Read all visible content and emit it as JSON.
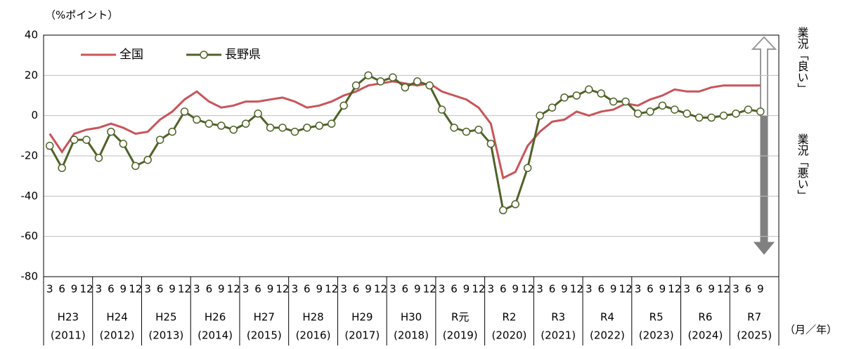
{
  "chart_data": {
    "type": "line",
    "y_unit_label": "（%ポイント）",
    "x_unit_label": "（月／年）",
    "annotation_good": "業況「良い」",
    "annotation_bad": "業況「悪い」",
    "categories": [
      "3",
      "6",
      "9",
      "12",
      "3",
      "6",
      "9",
      "12",
      "3",
      "6",
      "9",
      "12",
      "3",
      "6",
      "9",
      "12",
      "3",
      "6",
      "9",
      "12",
      "3",
      "6",
      "9",
      "12",
      "3",
      "6",
      "9",
      "12",
      "3",
      "6",
      "9",
      "12",
      "3",
      "6",
      "9",
      "12",
      "3",
      "6",
      "9",
      "12",
      "3",
      "6",
      "9",
      "12",
      "3",
      "6",
      "9",
      "12",
      "3",
      "6",
      "9",
      "12",
      "3",
      "6",
      "9",
      "12",
      "3",
      "6",
      "9"
    ],
    "years": [
      {
        "label": "H23",
        "sub": "(2011)"
      },
      {
        "label": "H24",
        "sub": "(2012)"
      },
      {
        "label": "H25",
        "sub": "(2013)"
      },
      {
        "label": "H26",
        "sub": "(2014)"
      },
      {
        "label": "H27",
        "sub": "(2015)"
      },
      {
        "label": "H28",
        "sub": "(2016)"
      },
      {
        "label": "H29",
        "sub": "(2017)"
      },
      {
        "label": "H30",
        "sub": "(2018)"
      },
      {
        "label": "R元",
        "sub": "(2019)"
      },
      {
        "label": "R2",
        "sub": "(2020)"
      },
      {
        "label": "R3",
        "sub": "(2021)"
      },
      {
        "label": "R4",
        "sub": "(2022)"
      },
      {
        "label": "R5",
        "sub": "(2023)"
      },
      {
        "label": "R6",
        "sub": "(2024)"
      },
      {
        "label": "R7",
        "sub": "(2025)"
      }
    ],
    "series": [
      {
        "name": "全国",
        "color": "#c9545a",
        "marker": false,
        "values": [
          -9,
          -18,
          -9,
          -7,
          -6,
          -4,
          -6,
          -9,
          -8,
          -2,
          2,
          8,
          12,
          7,
          4,
          5,
          7,
          7,
          8,
          9,
          7,
          4,
          5,
          7,
          10,
          12,
          15,
          16,
          17,
          16,
          15,
          16,
          12,
          10,
          8,
          4,
          -4,
          -31,
          -28,
          -15,
          -8,
          -3,
          -2,
          2,
          0,
          2,
          3,
          6,
          5,
          8,
          10,
          13,
          12,
          12,
          14,
          15,
          15,
          15,
          15
        ]
      },
      {
        "name": "長野県",
        "color": "#4f6228",
        "marker": true,
        "values": [
          -15,
          -26,
          -12,
          -12,
          -21,
          -8,
          -14,
          -25,
          -22,
          -12,
          -8,
          2,
          -2,
          -4,
          -5,
          -7,
          -4,
          1,
          -6,
          -6,
          -8,
          -6,
          -5,
          -4,
          5,
          15,
          20,
          17,
          19,
          14,
          17,
          15,
          3,
          -6,
          -8,
          -7,
          -14,
          -47,
          -44,
          -26,
          0,
          4,
          9,
          10,
          13,
          11,
          7,
          7,
          1,
          2,
          5,
          3,
          1,
          -1,
          -1,
          0,
          1,
          3,
          2
        ]
      }
    ],
    "ylim": [
      -80,
      40
    ],
    "yticks": [
      40,
      20,
      0,
      -20,
      -40,
      -60,
      -80
    ],
    "grid": true
  }
}
